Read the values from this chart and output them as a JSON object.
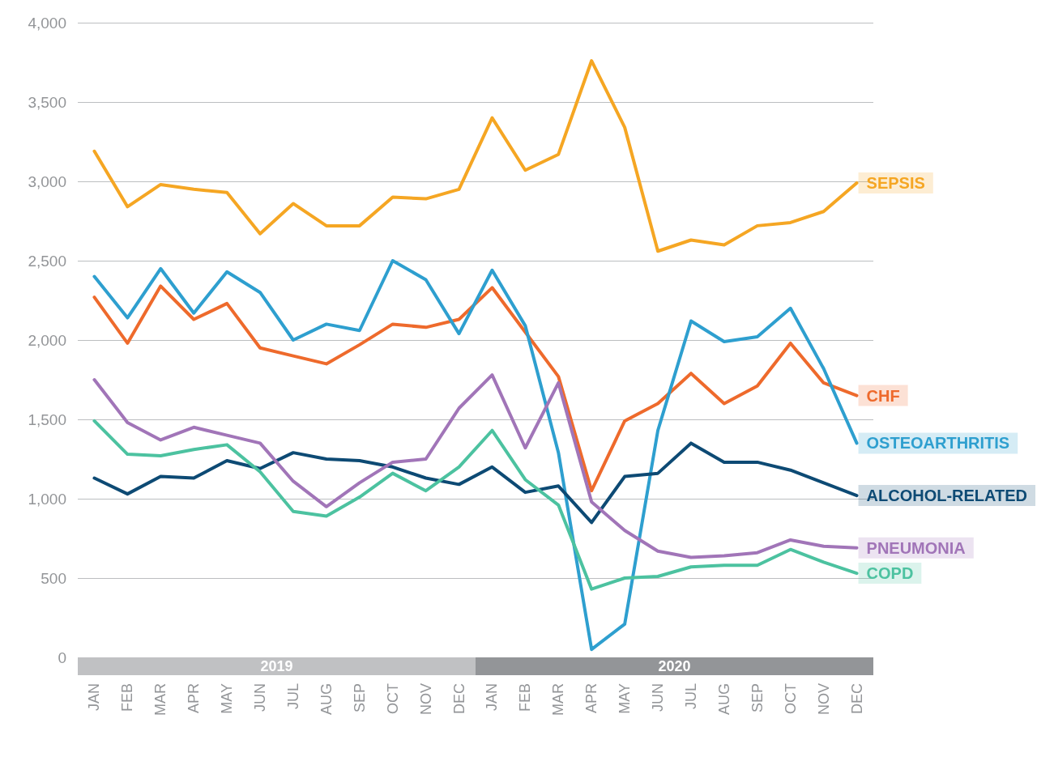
{
  "chart_data": {
    "type": "line",
    "categories": [
      "JAN",
      "FEB",
      "MAR",
      "APR",
      "MAY",
      "JUN",
      "JUL",
      "AUG",
      "SEP",
      "OCT",
      "NOV",
      "DEC",
      "JAN",
      "FEB",
      "MAR",
      "APR",
      "MAY",
      "JUN",
      "JUL",
      "AUG",
      "SEP",
      "OCT",
      "NOV",
      "DEC"
    ],
    "series": [
      {
        "name": "SEPSIS",
        "color": "#f5a623",
        "values": [
          3190,
          2840,
          2980,
          2950,
          2930,
          2670,
          2860,
          2720,
          2720,
          2900,
          2890,
          2950,
          3400,
          3070,
          3170,
          3760,
          3340,
          2560,
          2630,
          2600,
          2720,
          2740,
          2810,
          2990
        ]
      },
      {
        "name": "CHF",
        "color": "#ee6a2c",
        "values": [
          2270,
          1980,
          2340,
          2130,
          2230,
          1950,
          1900,
          1850,
          1970,
          2100,
          2080,
          2130,
          2330,
          2050,
          1770,
          1050,
          1490,
          1600,
          1790,
          1600,
          1710,
          1980,
          1730,
          1650
        ]
      },
      {
        "name": "OSTEOARTHRITIS",
        "color": "#2e9fcf",
        "values": [
          2400,
          2140,
          2450,
          2170,
          2430,
          2300,
          2000,
          2100,
          2060,
          2500,
          2380,
          2040,
          2440,
          2090,
          1290,
          50,
          210,
          1430,
          2120,
          1990,
          2020,
          2200,
          1820,
          1350
        ]
      },
      {
        "name": "ALCOHOL-RELATED",
        "color": "#0d4a74",
        "values": [
          1130,
          1030,
          1140,
          1130,
          1240,
          1190,
          1290,
          1250,
          1240,
          1200,
          1130,
          1090,
          1200,
          1040,
          1080,
          850,
          1140,
          1160,
          1350,
          1230,
          1230,
          1180,
          1100,
          1020
        ]
      },
      {
        "name": "PNEUMONIA",
        "color": "#a175b8",
        "values": [
          1750,
          1480,
          1370,
          1450,
          1400,
          1350,
          1110,
          950,
          1100,
          1230,
          1250,
          1570,
          1780,
          1320,
          1730,
          980,
          800,
          670,
          630,
          640,
          660,
          740,
          700,
          690
        ]
      },
      {
        "name": "COPD",
        "color": "#4cc2a0",
        "values": [
          1490,
          1280,
          1270,
          1310,
          1340,
          1170,
          920,
          890,
          1010,
          1160,
          1050,
          1200,
          1430,
          1120,
          960,
          430,
          500,
          510,
          570,
          580,
          580,
          680,
          600,
          530
        ]
      }
    ],
    "annotations": [
      "2019",
      "2020"
    ],
    "ylim": [
      0,
      4000
    ],
    "yticks": [
      0,
      500,
      {
        "value": 1000,
        "label": "1,000"
      },
      {
        "value": 1500,
        "label": "1,500"
      },
      {
        "value": 2000,
        "label": "2,000"
      },
      {
        "value": 2500,
        "label": "2,500"
      },
      {
        "value": 3000,
        "label": "3,000"
      },
      {
        "value": 3500,
        "label": "3,500"
      },
      {
        "value": 4000,
        "label": "4,000"
      }
    ],
    "grid": "y",
    "legend": false,
    "marker": "none",
    "line_style": "solid"
  }
}
